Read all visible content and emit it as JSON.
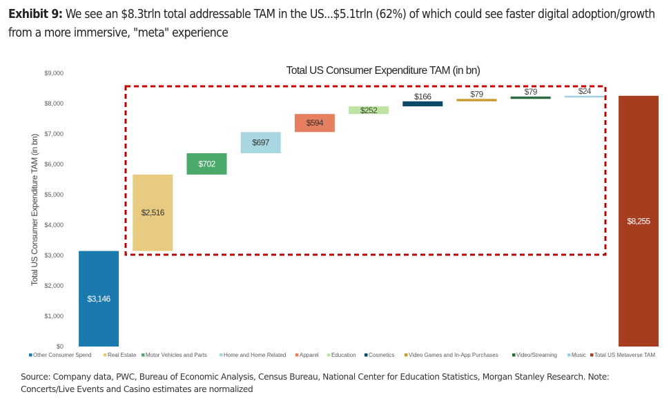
{
  "header": {
    "exhibit_label": "Exhibit 9:",
    "title_line": "We see an $8.3trln total addressable TAM in the US...$5.1trln (62%) of which could see faster digital adoption/growth from a more immersive, \"meta\" experience"
  },
  "source_note": "Source: Company data, PWC, Bureau of Economic Analysis, Census Bureau, National Center for Education Statistics, Morgan Stanley Research. Note: Concerts/Live Events and Casino estimates are normalized",
  "chart_data": {
    "type": "bar",
    "subtype": "waterfall",
    "title": "Total US Consumer Expenditure TAM (in bn)",
    "xlabel": "",
    "ylabel": "Total US Consumer Expenditure TAM (in bn)",
    "ylim": [
      0,
      9000
    ],
    "yticks": [
      0,
      1000,
      2000,
      3000,
      4000,
      5000,
      6000,
      7000,
      8000,
      9000
    ],
    "ytick_labels": [
      "$0",
      "$1,000",
      "$2,000",
      "$3,000",
      "$4,000",
      "$5,000",
      "$6,000",
      "$7,000",
      "$8,000",
      "$9,000"
    ],
    "grid": false,
    "legend_position": "bottom",
    "categories": [
      "Other Consumer Spend",
      "Real Estate",
      "Motor Vehicles and Parts",
      "Home and Home Related",
      "Apparel",
      "Education",
      "Cosmetics",
      "Video Games and In-App Purchases",
      "Video/Streaming",
      "Music",
      "Total US Metaverse TAM"
    ],
    "values": [
      3146,
      2516,
      702,
      697,
      594,
      252,
      166,
      79,
      79,
      24,
      8255
    ],
    "bar_kind": [
      "total",
      "increment",
      "increment",
      "increment",
      "increment",
      "increment",
      "increment",
      "increment",
      "increment",
      "increment",
      "total"
    ],
    "data_labels": [
      "$3,146",
      "$2,516",
      "$702",
      "$697",
      "$594",
      "$252",
      "$166",
      "$79",
      "$79",
      "$24",
      "$8,255"
    ],
    "colors": [
      "#1a7aad",
      "#e8cb80",
      "#4aaa6a",
      "#a8d7e2",
      "#e57f5f",
      "#bfe3a1",
      "#0d4a68",
      "#c99a2e",
      "#2e6b40",
      "#9fd0dc",
      "#a63d1f"
    ],
    "label_colors": [
      "#ffffff",
      "#333333",
      "#ffffff",
      "#333333",
      "#333333",
      "#444444",
      "#333333",
      "#444444",
      "#444444",
      "#444444",
      "#ffffff"
    ],
    "annotation": {
      "type": "dashed-box",
      "description": "Metaverse-addressable categories (Real Estate through Music)",
      "color": "#c00000"
    }
  }
}
